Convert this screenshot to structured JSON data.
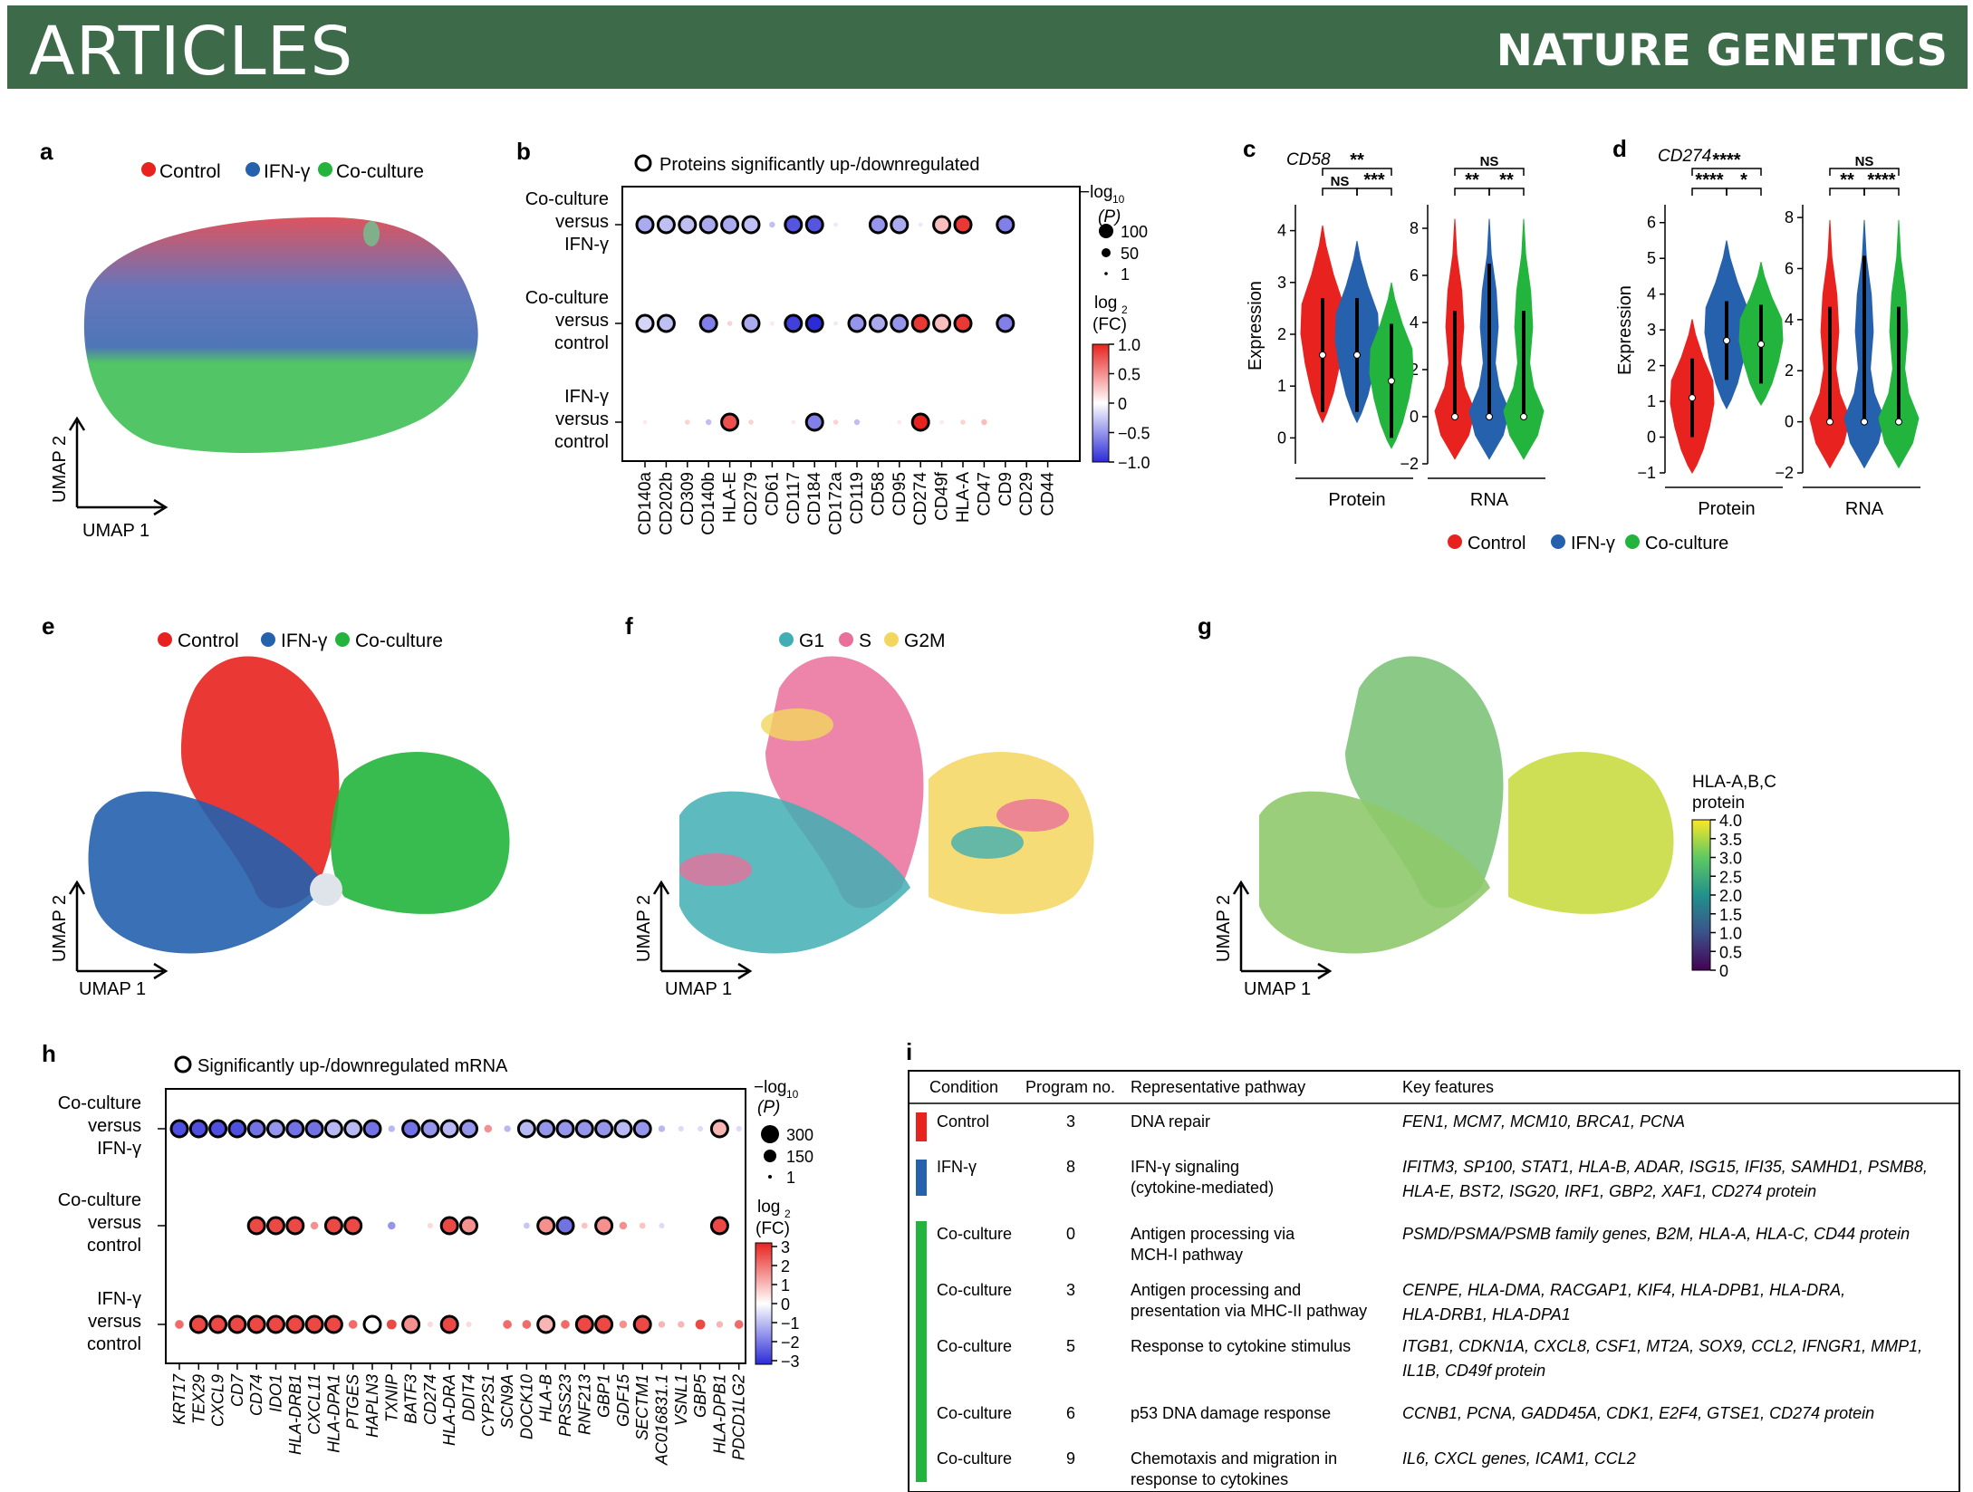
{
  "header": {
    "section": "ARTICLES",
    "journal": "NATURE GENETICS"
  },
  "colors": {
    "control": "#e8231f",
    "ifng": "#2561ad",
    "coculture": "#22b43c",
    "g1": "#41aeb3",
    "s": "#e9709a",
    "g2m": "#f3d65e",
    "header_bg": "#3d6b4a"
  },
  "panels": {
    "a": {
      "label": "a",
      "legend": [
        "Control",
        "IFN-γ",
        "Co-culture"
      ],
      "axis_x": "UMAP 1",
      "axis_y": "UMAP 2"
    },
    "b": {
      "label": "b",
      "legend_circle": "Proteins significantly up-/downregulated",
      "rows": [
        "Co-culture|versus|IFN-γ",
        "Co-culture|versus|control",
        "IFN-γ|versus|control"
      ],
      "size_title_1": "−log",
      "size_title_sub": "10",
      "size_title_2": "(P)",
      "size_legend": [
        "100",
        "50",
        "1"
      ],
      "color_title_1": "log",
      "color_title_sub": "2",
      "color_title_2": "(FC)",
      "color_ticks": [
        "1.0",
        "0.5",
        "0",
        "−0.5",
        "−1.0"
      ]
    },
    "c": {
      "label": "c",
      "title": "CD58",
      "ylabel": "Expression",
      "groups": [
        "Protein",
        "RNA"
      ]
    },
    "d": {
      "label": "d",
      "title": "CD274",
      "ylabel": "Expression",
      "groups": [
        "Protein",
        "RNA"
      ]
    },
    "cd_legend": [
      "Control",
      "IFN-γ",
      "Co-culture"
    ],
    "e": {
      "label": "e",
      "legend": [
        "Control",
        "IFN-γ",
        "Co-culture"
      ],
      "axis_x": "UMAP 1",
      "axis_y": "UMAP 2"
    },
    "f": {
      "label": "f",
      "legend": [
        "G1",
        "S",
        "G2M"
      ],
      "axis_x": "UMAP 1",
      "axis_y": "UMAP 2"
    },
    "g": {
      "label": "g",
      "cbar_title": [
        "HLA-A,B,C",
        "protein"
      ],
      "cbar_ticks": [
        "4.0",
        "3.5",
        "3.0",
        "2.5",
        "2.0",
        "1.5",
        "1.0",
        "0.5",
        "0"
      ],
      "axis_x": "UMAP 1",
      "axis_y": "UMAP 2"
    },
    "h": {
      "label": "h",
      "legend_circle": "Significantly up-/downregulated mRNA",
      "rows": [
        "Co-culture|versus|IFN-γ",
        "Co-culture|versus|control",
        "IFN-γ|versus|control"
      ],
      "size_legend": [
        "300",
        "150",
        "1"
      ],
      "color_ticks": [
        "3",
        "2",
        "1",
        "0",
        "−1",
        "−2",
        "−3"
      ]
    },
    "i": {
      "label": "i",
      "headers": [
        "Condition",
        "Program no.",
        "Representative pathway",
        "Key features"
      ],
      "rows": [
        {
          "condition": "Control",
          "program": "3",
          "pathway": [
            "DNA repair"
          ],
          "features": [
            "FEN1, MCM7, MCM10, BRCA1,  PCNA"
          ]
        },
        {
          "condition": "IFN-γ",
          "program": "8",
          "pathway": [
            "IFN-γ signaling",
            "(cytokine-mediated)"
          ],
          "features": [
            "IFITM3, SP100, STAT1, HLA-B, ADAR, ISG15, IFI35, SAMHD1, PSMB8,",
            "HLA-E, BST2, ISG20, IRF1, GBP2, XAF1, CD274 protein"
          ]
        },
        {
          "condition": "Co-culture",
          "program": "0",
          "pathway": [
            "Antigen processing via",
            "MCH-I pathway"
          ],
          "features": [
            "PSMD/PSMA/PSMB family genes, B2M, HLA-A, HLA-C, CD44 protein"
          ]
        },
        {
          "condition": "Co-culture",
          "program": "3",
          "pathway": [
            "Antigen processing and",
            "presentation via MHC-II pathway"
          ],
          "features": [
            "CENPE, HLA-DMA, RACGAP1, KIF4, HLA-DPB1, HLA-DRA,",
            "HLA-DRB1, HLA-DPA1"
          ]
        },
        {
          "condition": "Co-culture",
          "program": "5",
          "pathway": [
            "Response to cytokine stimulus"
          ],
          "features": [
            "ITGB1, CDKN1A, CXCL8, CSF1, MT2A, SOX9, CCL2, IFNGR1, MMP1,",
            "IL1B, CD49f protein"
          ]
        },
        {
          "condition": "Co-culture",
          "program": "6",
          "pathway": [
            "p53 DNA damage response"
          ],
          "features": [
            "CCNB1, PCNA, GADD45A, CDK1, E2F4, GTSE1, CD274 protein"
          ]
        },
        {
          "condition": "Co-culture",
          "program": "9",
          "pathway": [
            "Chemotaxis and migration in",
            "response to cytokines"
          ],
          "features": [
            "IL6, CXCL genes, ICAM1, CCL2"
          ]
        }
      ]
    }
  },
  "chart_data": [
    {
      "panel": "b",
      "type": "scatter",
      "categories": [
        "CD140a",
        "CD202b",
        "CD309",
        "CD140b",
        "HLA-E",
        "CD279",
        "CD61",
        "CD117",
        "CD184",
        "CD172a",
        "CD119",
        "CD58",
        "CD95",
        "CD274",
        "CD49f",
        "HLA-A",
        "CD47",
        "CD9",
        "CD29",
        "CD44"
      ],
      "series": [
        {
          "name": "Co-culture versus IFN-γ",
          "log2fc": [
            -0.4,
            -0.3,
            -0.3,
            -0.4,
            -0.4,
            -0.3,
            -0.3,
            -0.8,
            -0.8,
            -0.1,
            0,
            -0.5,
            -0.4,
            -0.1,
            0.3,
            0.9,
            0,
            -0.6,
            0,
            0
          ],
          "sig": [
            1,
            1,
            1,
            1,
            1,
            1,
            0,
            1,
            1,
            0,
            0,
            1,
            1,
            0,
            1,
            1,
            0,
            1,
            0,
            0
          ]
        },
        {
          "name": "Co-culture versus control",
          "log2fc": [
            -0.2,
            -0.3,
            0,
            -0.6,
            0.2,
            -0.4,
            0.1,
            -0.9,
            -1.0,
            -0.1,
            -0.5,
            -0.4,
            -0.5,
            0.9,
            0.3,
            0.9,
            0,
            -0.6,
            0,
            0
          ],
          "sig": [
            1,
            1,
            0,
            1,
            0,
            1,
            0,
            1,
            1,
            0,
            1,
            1,
            1,
            1,
            1,
            1,
            0,
            1,
            0,
            0
          ]
        },
        {
          "name": "IFN-γ versus control",
          "log2fc": [
            0.1,
            0,
            0.2,
            -0.3,
            0.8,
            0.2,
            0,
            0.1,
            -0.6,
            0.2,
            -0.3,
            0,
            0.1,
            1.0,
            0.1,
            0.2,
            0.3,
            0,
            0,
            0
          ],
          "sig": [
            0,
            0,
            0,
            0,
            1,
            0,
            0,
            0,
            1,
            0,
            0,
            0,
            0,
            1,
            0,
            0,
            0,
            0,
            0,
            0
          ]
        }
      ]
    },
    {
      "panel": "c",
      "type": "violin",
      "title": "CD58",
      "groups": [
        "Protein",
        "RNA"
      ],
      "protein_ylim": [
        -0.5,
        4.5
      ],
      "rna_ylim": [
        -2,
        9
      ],
      "medians": {
        "Protein": [
          1.6,
          1.6,
          1.1
        ],
        "RNA": [
          0,
          0,
          0
        ]
      },
      "significance": {
        "Protein": [
          "**",
          "NS",
          "***"
        ],
        "RNA": [
          "NS",
          "**",
          "**"
        ]
      }
    },
    {
      "panel": "d",
      "type": "violin",
      "title": "CD274",
      "groups": [
        "Protein",
        "RNA"
      ],
      "protein_ylim": [
        -1,
        6.5
      ],
      "rna_ylim": [
        -2,
        8.5
      ],
      "medians": {
        "Protein": [
          1.1,
          2.7,
          2.6
        ],
        "RNA": [
          0,
          0,
          0
        ]
      },
      "significance": {
        "Protein": [
          "****",
          "****",
          "*"
        ],
        "RNA": [
          "NS",
          "**",
          "****"
        ]
      }
    },
    {
      "panel": "h",
      "type": "scatter",
      "categories": [
        "KRT17",
        "TEX29",
        "CXCL9",
        "CD7",
        "CD74",
        "IDO1",
        "HLA-DRB1",
        "CXCL11",
        "HLA-DPA1",
        "PTGES",
        "HAPLN3",
        "TXNIP",
        "BATF3",
        "CD274",
        "HLA-DRA",
        "DDIT4",
        "CYP2S1",
        "SCN9A",
        "DOCK10",
        "HLA-B",
        "PRSS23",
        "RNF213",
        "GBP1",
        "GDF15",
        "SECTM1",
        "AC016831.1",
        "VSNL1",
        "GBP5",
        "HLA-DPB1",
        "PDCD1LG2"
      ],
      "series": [
        {
          "name": "Co-culture versus IFN-γ",
          "log2fc": [
            -2.5,
            -2.5,
            -2.5,
            -2.5,
            -2,
            -1.5,
            -2,
            -2,
            -1,
            -1,
            -2,
            -1,
            -2,
            -1.5,
            -1,
            -1.5,
            1.5,
            -1,
            -1,
            -1.5,
            -1.5,
            -1.5,
            -1.5,
            -1,
            -1.5,
            -1,
            -0.5,
            -0.5,
            1,
            -0.5
          ],
          "sig": [
            1,
            1,
            1,
            1,
            1,
            1,
            1,
            1,
            1,
            1,
            1,
            0,
            1,
            1,
            1,
            1,
            0,
            0,
            1,
            1,
            1,
            1,
            1,
            1,
            1,
            0,
            0,
            0,
            1,
            0
          ]
        },
        {
          "name": "Co-culture versus control",
          "log2fc": [
            0,
            0,
            0,
            0,
            2.5,
            2.5,
            2.5,
            1.5,
            2.5,
            2.5,
            0,
            -1.5,
            0,
            0.5,
            2.5,
            1.5,
            0,
            0,
            -0.8,
            1.5,
            -2,
            0.8,
            1.5,
            1.5,
            0.8,
            -0.5,
            0,
            0,
            2.5,
            0
          ],
          "sig": [
            0,
            0,
            0,
            0,
            1,
            1,
            1,
            0,
            1,
            1,
            0,
            0,
            0,
            0,
            1,
            1,
            0,
            0,
            0,
            1,
            1,
            0,
            1,
            0,
            0,
            0,
            0,
            0,
            1,
            0
          ]
        },
        {
          "name": "IFN-γ versus control",
          "log2fc": [
            2,
            2.5,
            2.5,
            2.5,
            2.5,
            2.5,
            2.5,
            2.5,
            2.5,
            2,
            0,
            2.5,
            1.5,
            0.5,
            2.5,
            0.5,
            0,
            2,
            2,
            1,
            2,
            2.5,
            2.5,
            1.5,
            2.5,
            1,
            1,
            2.5,
            1,
            2
          ],
          "sig": [
            0,
            1,
            1,
            1,
            1,
            1,
            1,
            1,
            1,
            0,
            1,
            0,
            1,
            0,
            1,
            0,
            0,
            0,
            0,
            1,
            0,
            1,
            1,
            0,
            1,
            0,
            0,
            0,
            0,
            0
          ]
        }
      ]
    }
  ]
}
